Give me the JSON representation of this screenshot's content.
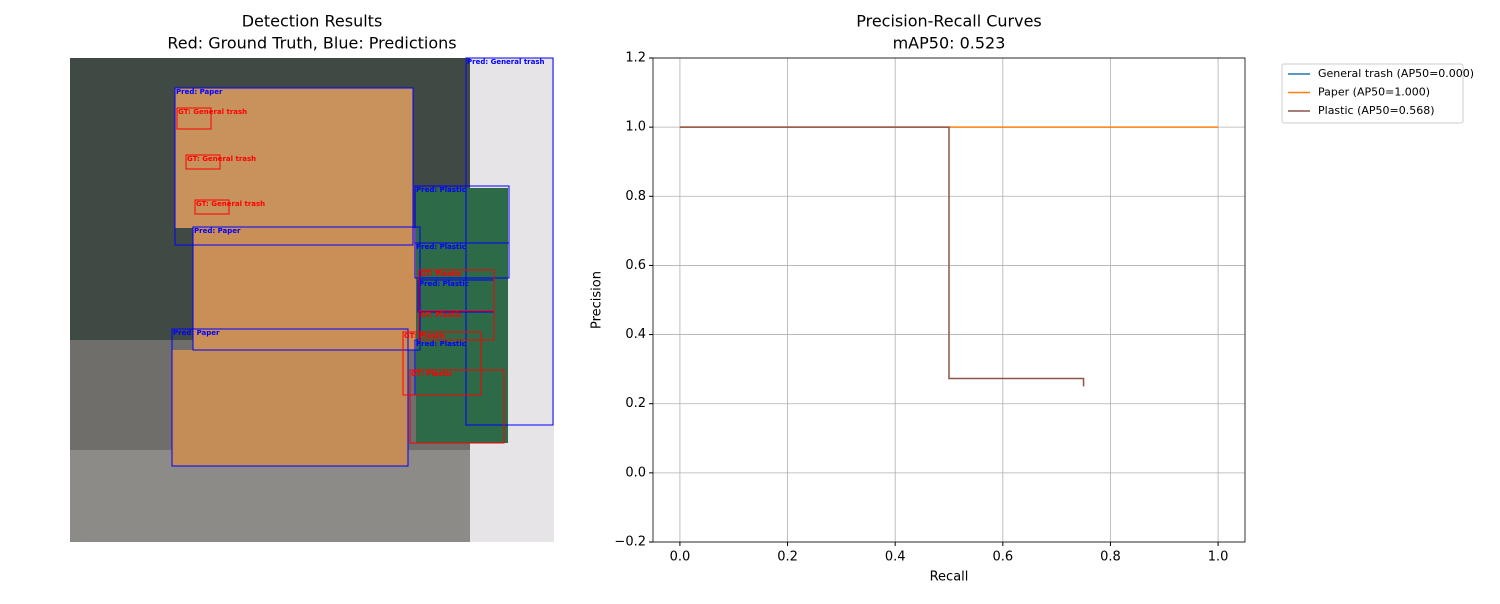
{
  "chart_data": [
    {
      "type": "image",
      "title": "Detection Results",
      "subtitle": "Red: Ground Truth, Blue: Predictions",
      "boxes": [
        {
          "label": "Pred: General trash",
          "color": "blue"
        },
        {
          "label": "Pred: Paper",
          "color": "blue"
        },
        {
          "label": "Pred: Paper",
          "color": "blue"
        },
        {
          "label": "Pred: Paper",
          "color": "blue"
        },
        {
          "label": "Pred: Plastic",
          "color": "blue"
        },
        {
          "label": "Pred: Plastic",
          "color": "blue"
        },
        {
          "label": "Pred: Plastic",
          "color": "blue"
        },
        {
          "label": "Pred: Plastic",
          "color": "blue"
        },
        {
          "label": "GT: General trash",
          "color": "red"
        },
        {
          "label": "GT: General trash",
          "color": "red"
        },
        {
          "label": "GT: General trash",
          "color": "red"
        },
        {
          "label": "GT: Plastic",
          "color": "red"
        },
        {
          "label": "GT: Plastic",
          "color": "red"
        },
        {
          "label": "GT: Plastic",
          "color": "red"
        },
        {
          "label": "GT: Plastic",
          "color": "red"
        }
      ]
    },
    {
      "type": "line",
      "title": "Precision-Recall Curves",
      "subtitle": "mAP50: 0.523",
      "x_label": "Recall",
      "y_label": "Precision",
      "xlim": [
        -0.05,
        1.05
      ],
      "ylim": [
        -0.2,
        1.2
      ],
      "xticks": [
        {
          "value": 0,
          "label": "0.0"
        },
        {
          "value": 0.2,
          "label": "0.2"
        },
        {
          "value": 0.4,
          "label": "0.4"
        },
        {
          "value": 0.6,
          "label": "0.6"
        },
        {
          "value": 0.8,
          "label": "0.8"
        },
        {
          "value": 1,
          "label": "1.0"
        }
      ],
      "yticks": [
        {
          "value": -0.2,
          "label": "−0.2"
        },
        {
          "value": 0,
          "label": "0.0"
        },
        {
          "value": 0.2,
          "label": "0.2"
        },
        {
          "value": 0.4,
          "label": "0.4"
        },
        {
          "value": 0.6,
          "label": "0.6"
        },
        {
          "value": 0.8,
          "label": "0.8"
        },
        {
          "value": 1,
          "label": "1.0"
        },
        {
          "value": 1.2,
          "label": "1.2"
        }
      ],
      "grid": true,
      "legend": "outside upper right",
      "series": [
        {
          "name": "General trash (AP50=0.000)",
          "color": "#1f77b4",
          "x": [],
          "values": []
        },
        {
          "name": "Paper (AP50=1.000)",
          "color": "#ff7f0e",
          "x": [
            0,
            1
          ],
          "values": [
            1,
            1
          ]
        },
        {
          "name": "Plastic (AP50=0.568)",
          "color": "#8c564b",
          "x": [
            0,
            0.5,
            0.5,
            0.75,
            0.75
          ],
          "values": [
            1,
            1,
            0.273,
            0.273,
            0.25
          ]
        }
      ]
    }
  ]
}
